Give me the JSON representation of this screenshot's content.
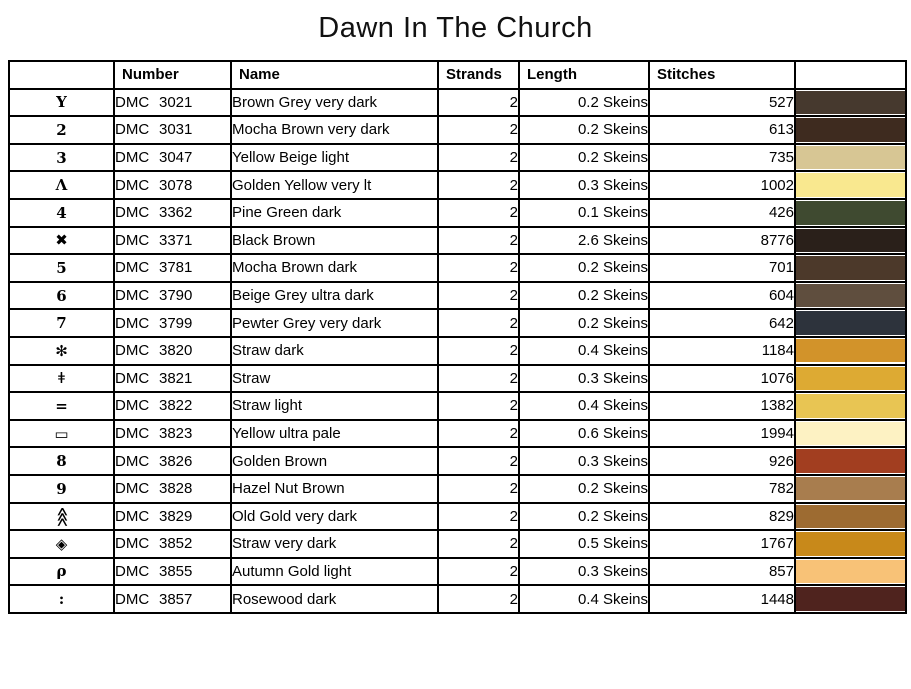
{
  "title": "Dawn In The Church",
  "table": {
    "headers": {
      "symbol": "",
      "number": "Number",
      "name": "Name",
      "strands": "Strands",
      "length": "Length",
      "stitches": "Stitches",
      "color": ""
    },
    "rows": [
      {
        "symbol": "Y",
        "brand": "DMC",
        "code": "3021",
        "name": "Brown Grey very dark",
        "strands": "2",
        "length": "0.2 Skeins",
        "stitches": "527",
        "color": "#46392e"
      },
      {
        "symbol": "2",
        "brand": "DMC",
        "code": "3031",
        "name": "Mocha Brown very dark",
        "strands": "2",
        "length": "0.2 Skeins",
        "stitches": "613",
        "color": "#3e2b1f"
      },
      {
        "symbol": "3",
        "brand": "DMC",
        "code": "3047",
        "name": "Yellow Beige light",
        "strands": "2",
        "length": "0.2 Skeins",
        "stitches": "735",
        "color": "#d7c694"
      },
      {
        "symbol": "Λ",
        "brand": "DMC",
        "code": "3078",
        "name": "Golden Yellow very lt",
        "strands": "2",
        "length": "0.3 Skeins",
        "stitches": "1002",
        "color": "#f9e88f"
      },
      {
        "symbol": "4",
        "brand": "DMC",
        "code": "3362",
        "name": "Pine Green dark",
        "strands": "2",
        "length": "0.1 Skeins",
        "stitches": "426",
        "color": "#3f4a30"
      },
      {
        "symbol": "✖",
        "brand": "DMC",
        "code": "3371",
        "name": "Black Brown",
        "strands": "2",
        "length": "2.6 Skeins",
        "stitches": "8776",
        "color": "#2a201a"
      },
      {
        "symbol": "5",
        "brand": "DMC",
        "code": "3781",
        "name": "Mocha Brown dark",
        "strands": "2",
        "length": "0.2 Skeins",
        "stitches": "701",
        "color": "#4c392a"
      },
      {
        "symbol": "6",
        "brand": "DMC",
        "code": "3790",
        "name": "Beige Grey ultra dark",
        "strands": "2",
        "length": "0.2 Skeins",
        "stitches": "604",
        "color": "#5f4e3e"
      },
      {
        "symbol": "7",
        "brand": "DMC",
        "code": "3799",
        "name": "Pewter Grey very dark",
        "strands": "2",
        "length": "0.2 Skeins",
        "stitches": "642",
        "color": "#2d333c"
      },
      {
        "symbol": "✻",
        "brand": "DMC",
        "code": "3820",
        "name": "Straw dark",
        "strands": "2",
        "length": "0.4 Skeins",
        "stitches": "1184",
        "color": "#d2932a"
      },
      {
        "symbol": "ǂ",
        "brand": "DMC",
        "code": "3821",
        "name": "Straw",
        "strands": "2",
        "length": "0.3 Skeins",
        "stitches": "1076",
        "color": "#ddaa33"
      },
      {
        "symbol": "=",
        "brand": "DMC",
        "code": "3822",
        "name": "Straw light",
        "strands": "2",
        "length": "0.4 Skeins",
        "stitches": "1382",
        "color": "#e8c553"
      },
      {
        "symbol": "▭",
        "brand": "DMC",
        "code": "3823",
        "name": "Yellow ultra pale",
        "strands": "2",
        "length": "0.6 Skeins",
        "stitches": "1994",
        "color": "#fdf2c3"
      },
      {
        "symbol": "8",
        "brand": "DMC",
        "code": "3826",
        "name": "Golden Brown",
        "strands": "2",
        "length": "0.3 Skeins",
        "stitches": "926",
        "color": "#a23e20"
      },
      {
        "symbol": "9",
        "brand": "DMC",
        "code": "3828",
        "name": "Hazel Nut Brown",
        "strands": "2",
        "length": "0.2 Skeins",
        "stitches": "782",
        "color": "#a87d4e"
      },
      {
        "symbol": "⋘",
        "symbol_rotate": true,
        "brand": "DMC",
        "code": "3829",
        "name": "Old Gold very dark",
        "strands": "2",
        "length": "0.2 Skeins",
        "stitches": "829",
        "color": "#9d6b31"
      },
      {
        "symbol": "◈",
        "brand": "DMC",
        "code": "3852",
        "name": "Straw very dark",
        "strands": "2",
        "length": "0.5 Skeins",
        "stitches": "1767",
        "color": "#c8891a"
      },
      {
        "symbol": "ρ",
        "brand": "DMC",
        "code": "3855",
        "name": "Autumn Gold light",
        "strands": "2",
        "length": "0.3 Skeins",
        "stitches": "857",
        "color": "#f8c277"
      },
      {
        "symbol": ":",
        "brand": "DMC",
        "code": "3857",
        "name": "Rosewood dark",
        "strands": "2",
        "length": "0.4 Skeins",
        "stitches": "1448",
        "color": "#4f231e"
      }
    ]
  }
}
